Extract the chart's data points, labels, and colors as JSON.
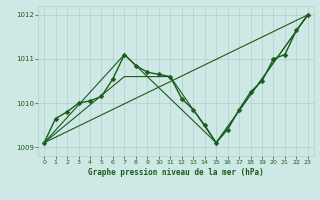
{
  "background_color": "#cde8e5",
  "grid_color": "#b0d0cc",
  "line_color": "#1a5c1a",
  "title": "Graphe pression niveau de la mer (hPa)",
  "xlim": [
    -0.5,
    23.5
  ],
  "ylim": [
    1008.8,
    1012.2
  ],
  "yticks": [
    1009,
    1010,
    1011,
    1012
  ],
  "xticks": [
    0,
    1,
    2,
    3,
    4,
    5,
    6,
    7,
    8,
    9,
    10,
    11,
    12,
    13,
    14,
    15,
    16,
    17,
    18,
    19,
    20,
    21,
    22,
    23
  ],
  "series_main": {
    "x": [
      0,
      1,
      2,
      3,
      4,
      5,
      6,
      7,
      8,
      9,
      10,
      11,
      12,
      13,
      14,
      15,
      16,
      17,
      18,
      19,
      20,
      21,
      22,
      23
    ],
    "y": [
      1009.1,
      1009.65,
      1009.8,
      1010.0,
      1010.05,
      1010.15,
      1010.55,
      1011.1,
      1010.85,
      1010.7,
      1010.65,
      1010.6,
      1010.1,
      1009.85,
      1009.5,
      1009.1,
      1009.4,
      1009.85,
      1010.25,
      1010.5,
      1011.0,
      1011.1,
      1011.65,
      1012.0
    ],
    "linewidth": 1.0,
    "markersize": 2.5
  },
  "series_lines": [
    {
      "x": [
        0,
        23
      ],
      "y": [
        1009.1,
        1012.0
      ],
      "linewidth": 0.8
    },
    {
      "x": [
        0,
        7,
        15,
        23
      ],
      "y": [
        1009.1,
        1011.1,
        1009.1,
        1012.0
      ],
      "linewidth": 0.8
    },
    {
      "x": [
        0,
        7,
        11,
        15,
        23
      ],
      "y": [
        1009.1,
        1010.6,
        1010.6,
        1009.1,
        1012.0
      ],
      "linewidth": 0.8
    }
  ],
  "figsize": [
    3.2,
    2.0
  ],
  "dpi": 100
}
